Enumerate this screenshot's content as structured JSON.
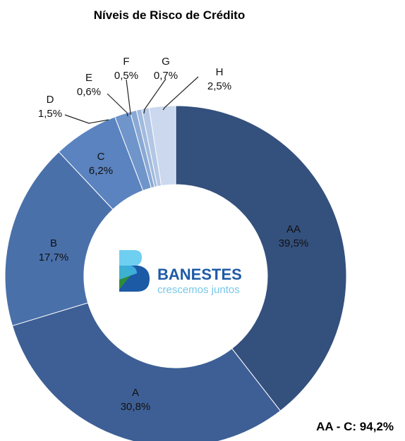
{
  "chart_data": {
    "type": "pie",
    "title": "Níveis de Risco de Crédito",
    "slices": [
      {
        "category": "AA",
        "value": 39.5,
        "label": "39,5%",
        "color": "#34507d"
      },
      {
        "category": "A",
        "value": 30.8,
        "label": "30,8%",
        "color": "#3d5f95"
      },
      {
        "category": "B",
        "value": 17.7,
        "label": "17,7%",
        "color": "#4a70aa"
      },
      {
        "category": "C",
        "value": 6.2,
        "label": "6,2%",
        "color": "#5a83bf"
      },
      {
        "category": "D",
        "value": 1.5,
        "label": "1,5%",
        "color": "#6f95ca"
      },
      {
        "category": "E",
        "value": 0.6,
        "label": "0,6%",
        "color": "#8aa9d4"
      },
      {
        "category": "F",
        "value": 0.5,
        "label": "0,5%",
        "color": "#a1bade"
      },
      {
        "category": "G",
        "value": 0.7,
        "label": "0,7%",
        "color": "#b3c7e5"
      },
      {
        "category": "H",
        "value": 2.5,
        "label": "2,5%",
        "color": "#cbd8ee"
      }
    ],
    "donut": true,
    "summary": "AA - C: 94,2%"
  },
  "logo": {
    "name": "BANESTES",
    "tagline": "crescemos juntos"
  }
}
